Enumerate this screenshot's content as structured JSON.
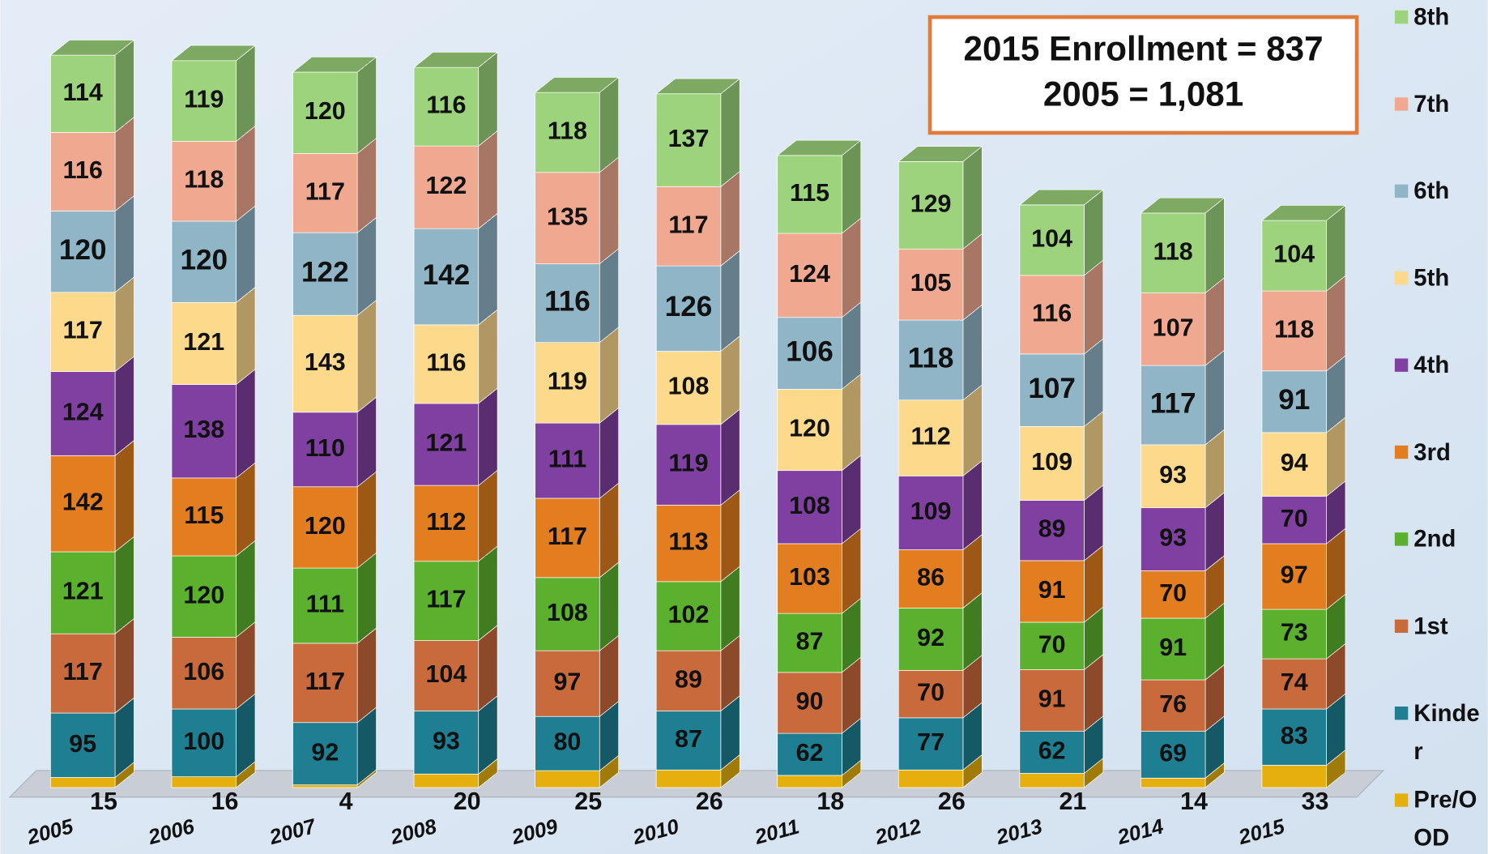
{
  "chart_data": {
    "type": "bar",
    "stacked": true,
    "legend": "right",
    "annotations": [
      "2015 Enrollment = 837",
      "2005 = 1,081"
    ],
    "categories": [
      "2005",
      "2006",
      "2007",
      "2008",
      "2009",
      "2010",
      "2011",
      "2012",
      "2013",
      "2014",
      "2015"
    ],
    "series": [
      {
        "name": "Pre/OOD",
        "color": "#e5b00e",
        "values": [
          15,
          16,
          4,
          20,
          25,
          26,
          18,
          26,
          21,
          14,
          33
        ]
      },
      {
        "name": "Kinder",
        "color": "#1f7f92",
        "values": [
          95,
          100,
          92,
          93,
          80,
          87,
          62,
          77,
          62,
          69,
          83
        ]
      },
      {
        "name": "1st",
        "color": "#c96a3c",
        "values": [
          117,
          106,
          117,
          104,
          97,
          89,
          90,
          70,
          91,
          76,
          74
        ]
      },
      {
        "name": "2nd",
        "color": "#5bb12e",
        "values": [
          121,
          120,
          111,
          117,
          108,
          102,
          87,
          92,
          70,
          91,
          73
        ]
      },
      {
        "name": "3rd",
        "color": "#e27d20",
        "values": [
          142,
          115,
          120,
          112,
          117,
          113,
          103,
          86,
          91,
          70,
          97
        ]
      },
      {
        "name": "4th",
        "color": "#8040a2",
        "values": [
          124,
          138,
          110,
          121,
          111,
          119,
          108,
          109,
          89,
          93,
          70
        ]
      },
      {
        "name": "5th",
        "color": "#fdd98c",
        "values": [
          117,
          121,
          143,
          116,
          119,
          108,
          120,
          112,
          109,
          93,
          94
        ]
      },
      {
        "name": "6th",
        "color": "#8fb5c7",
        "values": [
          120,
          120,
          122,
          142,
          116,
          126,
          106,
          118,
          107,
          117,
          91
        ]
      },
      {
        "name": "7th",
        "color": "#f0a890",
        "values": [
          116,
          118,
          117,
          122,
          135,
          117,
          124,
          105,
          116,
          107,
          118
        ]
      },
      {
        "name": "8th",
        "color": "#9cd37c",
        "values": [
          114,
          119,
          120,
          116,
          118,
          137,
          115,
          129,
          104,
          118,
          104
        ]
      }
    ]
  }
}
